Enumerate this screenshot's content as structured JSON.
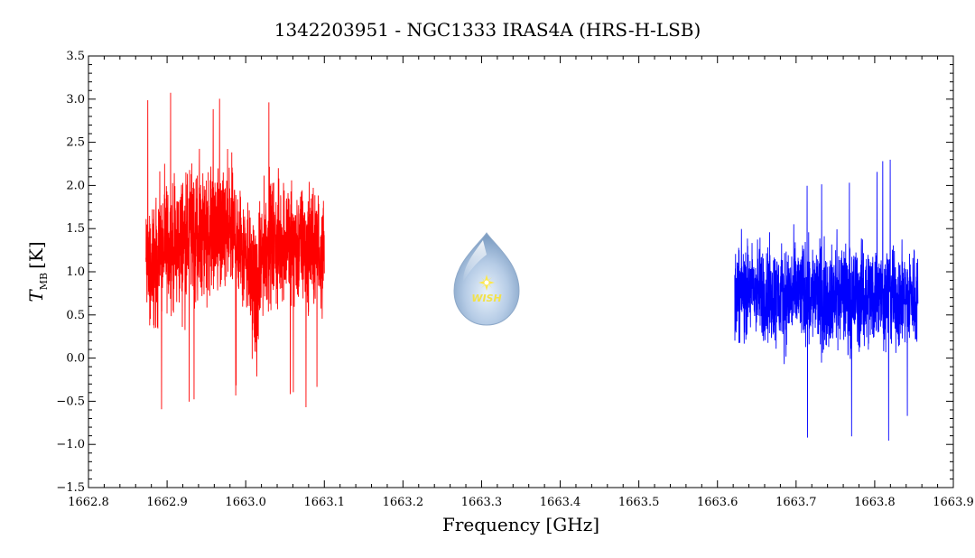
{
  "chart_data": {
    "type": "line",
    "title": "1342203951 - NGC1333 IRAS4A (HRS-H-LSB)",
    "xlabel": "Frequency [GHz]",
    "ylabel": "T",
    "ylabel_subscript": "MB",
    "ylabel_unit": "[K]",
    "xlim": [
      1662.8,
      1663.9
    ],
    "ylim": [
      -1.5,
      3.5
    ],
    "x_ticks": [
      1662.8,
      1662.9,
      1663.0,
      1663.1,
      1663.2,
      1663.3,
      1663.4,
      1663.5,
      1663.6,
      1663.7,
      1663.8,
      1663.9
    ],
    "x_tick_labels": [
      "1662.8",
      "1662.9",
      "1663.0",
      "1663.1",
      "1663.2",
      "1663.3",
      "1663.4",
      "1663.5",
      "1663.6",
      "1663.7",
      "1663.8",
      "1663.9"
    ],
    "y_ticks": [
      -1.5,
      -1.0,
      -0.5,
      0.0,
      0.5,
      1.0,
      1.5,
      2.0,
      2.5,
      3.0,
      3.5
    ],
    "y_tick_labels": [
      "−1.5",
      "−1.0",
      "−0.5",
      "0.0",
      "0.5",
      "1.0",
      "1.5",
      "2.0",
      "2.5",
      "3.0",
      "3.5"
    ],
    "grid": false,
    "logo_text": "WISH",
    "series": [
      {
        "color": "#ff0000",
        "x": [
          1662.873,
          1662.88,
          1662.89,
          1662.9,
          1662.91,
          1662.92,
          1662.93,
          1662.94,
          1662.95,
          1662.96,
          1662.97,
          1662.98,
          1662.99,
          1663.0,
          1663.01,
          1663.015,
          1663.02,
          1663.03,
          1663.04,
          1663.05,
          1663.06,
          1663.07,
          1663.08,
          1663.09,
          1663.1
        ],
        "values": [
          1.1,
          1.0,
          1.2,
          1.3,
          1.25,
          1.35,
          1.45,
          1.4,
          1.5,
          1.45,
          1.4,
          1.5,
          1.35,
          1.3,
          0.8,
          0.6,
          1.2,
          1.35,
          1.3,
          1.4,
          1.35,
          1.3,
          1.25,
          1.3,
          1.2
        ],
        "spread": [
          0.7,
          0.75,
          0.75,
          0.75,
          0.75,
          0.8,
          0.85,
          0.85,
          0.8,
          0.75,
          0.75,
          0.8,
          0.8,
          0.75,
          0.75,
          0.75,
          0.75,
          0.75,
          0.75,
          0.75,
          0.75,
          0.7,
          0.7,
          0.7,
          0.7
        ],
        "min": -0.6,
        "max": 3.1
      },
      {
        "color": "#0000ff",
        "x": [
          1663.622,
          1663.64,
          1663.66,
          1663.68,
          1663.7,
          1663.72,
          1663.74,
          1663.76,
          1663.78,
          1663.8,
          1663.82,
          1663.84,
          1663.855
        ],
        "values": [
          0.75,
          0.8,
          0.75,
          0.7,
          0.75,
          0.75,
          0.7,
          0.75,
          0.7,
          0.75,
          0.7,
          0.7,
          0.7
        ],
        "spread": [
          0.55,
          0.55,
          0.6,
          0.6,
          0.6,
          0.6,
          0.6,
          0.6,
          0.6,
          0.6,
          0.6,
          0.6,
          0.6
        ],
        "min": -1.0,
        "max": 2.3
      }
    ]
  }
}
